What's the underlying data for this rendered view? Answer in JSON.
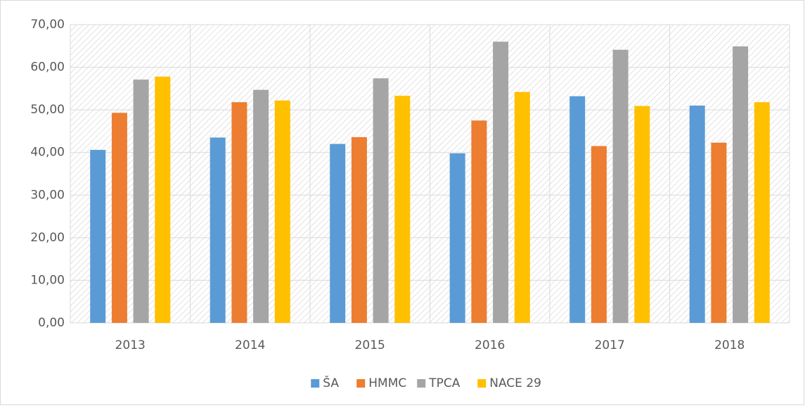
{
  "chart_data": {
    "type": "bar",
    "categories": [
      "2013",
      "2014",
      "2015",
      "2016",
      "2017",
      "2018"
    ],
    "series": [
      {
        "name": "ŠA",
        "color": "#5b9bd5",
        "values": [
          40.6,
          43.5,
          42.0,
          39.8,
          53.2,
          51.0
        ]
      },
      {
        "name": "HMMC",
        "color": "#ed7d31",
        "values": [
          49.3,
          51.8,
          43.6,
          47.5,
          41.5,
          42.3
        ]
      },
      {
        "name": "TPCA",
        "color": "#a5a5a5",
        "values": [
          57.1,
          54.7,
          57.4,
          66.0,
          64.1,
          64.9
        ]
      },
      {
        "name": "NACE 29",
        "color": "#ffc000",
        "values": [
          57.8,
          52.2,
          53.3,
          54.2,
          50.9,
          51.8
        ]
      }
    ],
    "ylim": [
      0,
      70
    ],
    "yticks": [
      {
        "value": 0,
        "label": "0,00"
      },
      {
        "value": 10,
        "label": "10,00"
      },
      {
        "value": 20,
        "label": "20,00"
      },
      {
        "value": 30,
        "label": "30,00"
      },
      {
        "value": 40,
        "label": "40,00"
      },
      {
        "value": 50,
        "label": "50,00"
      },
      {
        "value": 60,
        "label": "60,00"
      },
      {
        "value": 70,
        "label": "70,00"
      }
    ],
    "grid": true,
    "legend": "bottom"
  }
}
